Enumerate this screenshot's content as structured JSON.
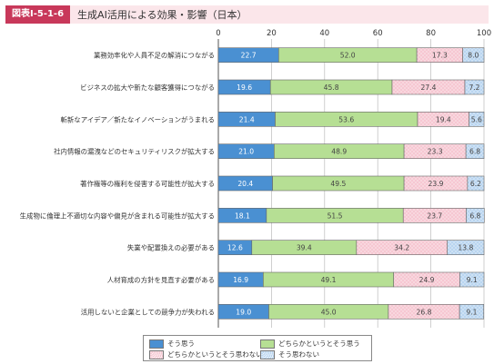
{
  "header": {
    "figure_id": "図表Ⅰ-5-1-6",
    "title": "生成AI活用による効果・影響（日本）"
  },
  "chart_data": {
    "type": "bar",
    "orientation": "horizontal",
    "stacked": true,
    "title": "生成AI活用による効果・影響（日本）",
    "xlim": [
      0,
      100
    ],
    "x_ticks": [
      "0",
      "20",
      "40",
      "60",
      "80",
      "100"
    ],
    "grid": true,
    "legend_position": "bottom",
    "categories": [
      "業務効率化や人員不足の解消につながる",
      "ビジネスの拡大や新たな顧客獲得につながる",
      "斬新なアイデア／新たなイノベーションがうまれる",
      "社内情報の漏洩などのセキュリティリスクが拡大する",
      "著作権等の権利を侵害する可能性が拡大する",
      "生成物に倫理上不適切な内容や偏見が含まれる可能性が拡大する",
      "失業や配置換えの必要がある",
      "人材育成の方針を見直す必要がある",
      "活用しないと企業としての競争力が失われる"
    ],
    "series": [
      {
        "name": "そう思う",
        "color": "#4a90d2",
        "values": [
          22.7,
          19.6,
          21.4,
          21.0,
          20.4,
          18.1,
          12.6,
          16.9,
          19.0
        ],
        "labels": [
          "22.7",
          "19.6",
          "21.4",
          "21.0",
          "20.4",
          "18.1",
          "12.6",
          "16.9",
          "19.0"
        ]
      },
      {
        "name": "どちらかというとそう思う",
        "color": "#b6df94",
        "values": [
          52.0,
          45.8,
          53.6,
          48.9,
          49.5,
          51.5,
          39.4,
          49.1,
          45.0
        ],
        "labels": [
          "52.0",
          "45.8",
          "53.6",
          "48.9",
          "49.5",
          "51.5",
          "39.4",
          "49.1",
          "45.0"
        ]
      },
      {
        "name": "どちらかというとそう思わない",
        "color": "#f6c7d2",
        "values": [
          17.3,
          27.4,
          19.4,
          23.3,
          23.9,
          23.7,
          34.2,
          24.9,
          26.8
        ],
        "labels": [
          "17.3",
          "27.4",
          "19.4",
          "23.3",
          "23.9",
          "23.7",
          "34.2",
          "24.9",
          "26.8"
        ]
      },
      {
        "name": "そう思わない",
        "color": "#b9d5f0",
        "values": [
          8.0,
          7.2,
          5.6,
          6.8,
          6.2,
          6.8,
          13.8,
          9.1,
          9.1
        ],
        "labels": [
          "8.0",
          "7.2",
          "5.6",
          "6.8",
          "6.2",
          "6.8",
          "13.8",
          "9.1",
          "9.1"
        ]
      }
    ]
  }
}
